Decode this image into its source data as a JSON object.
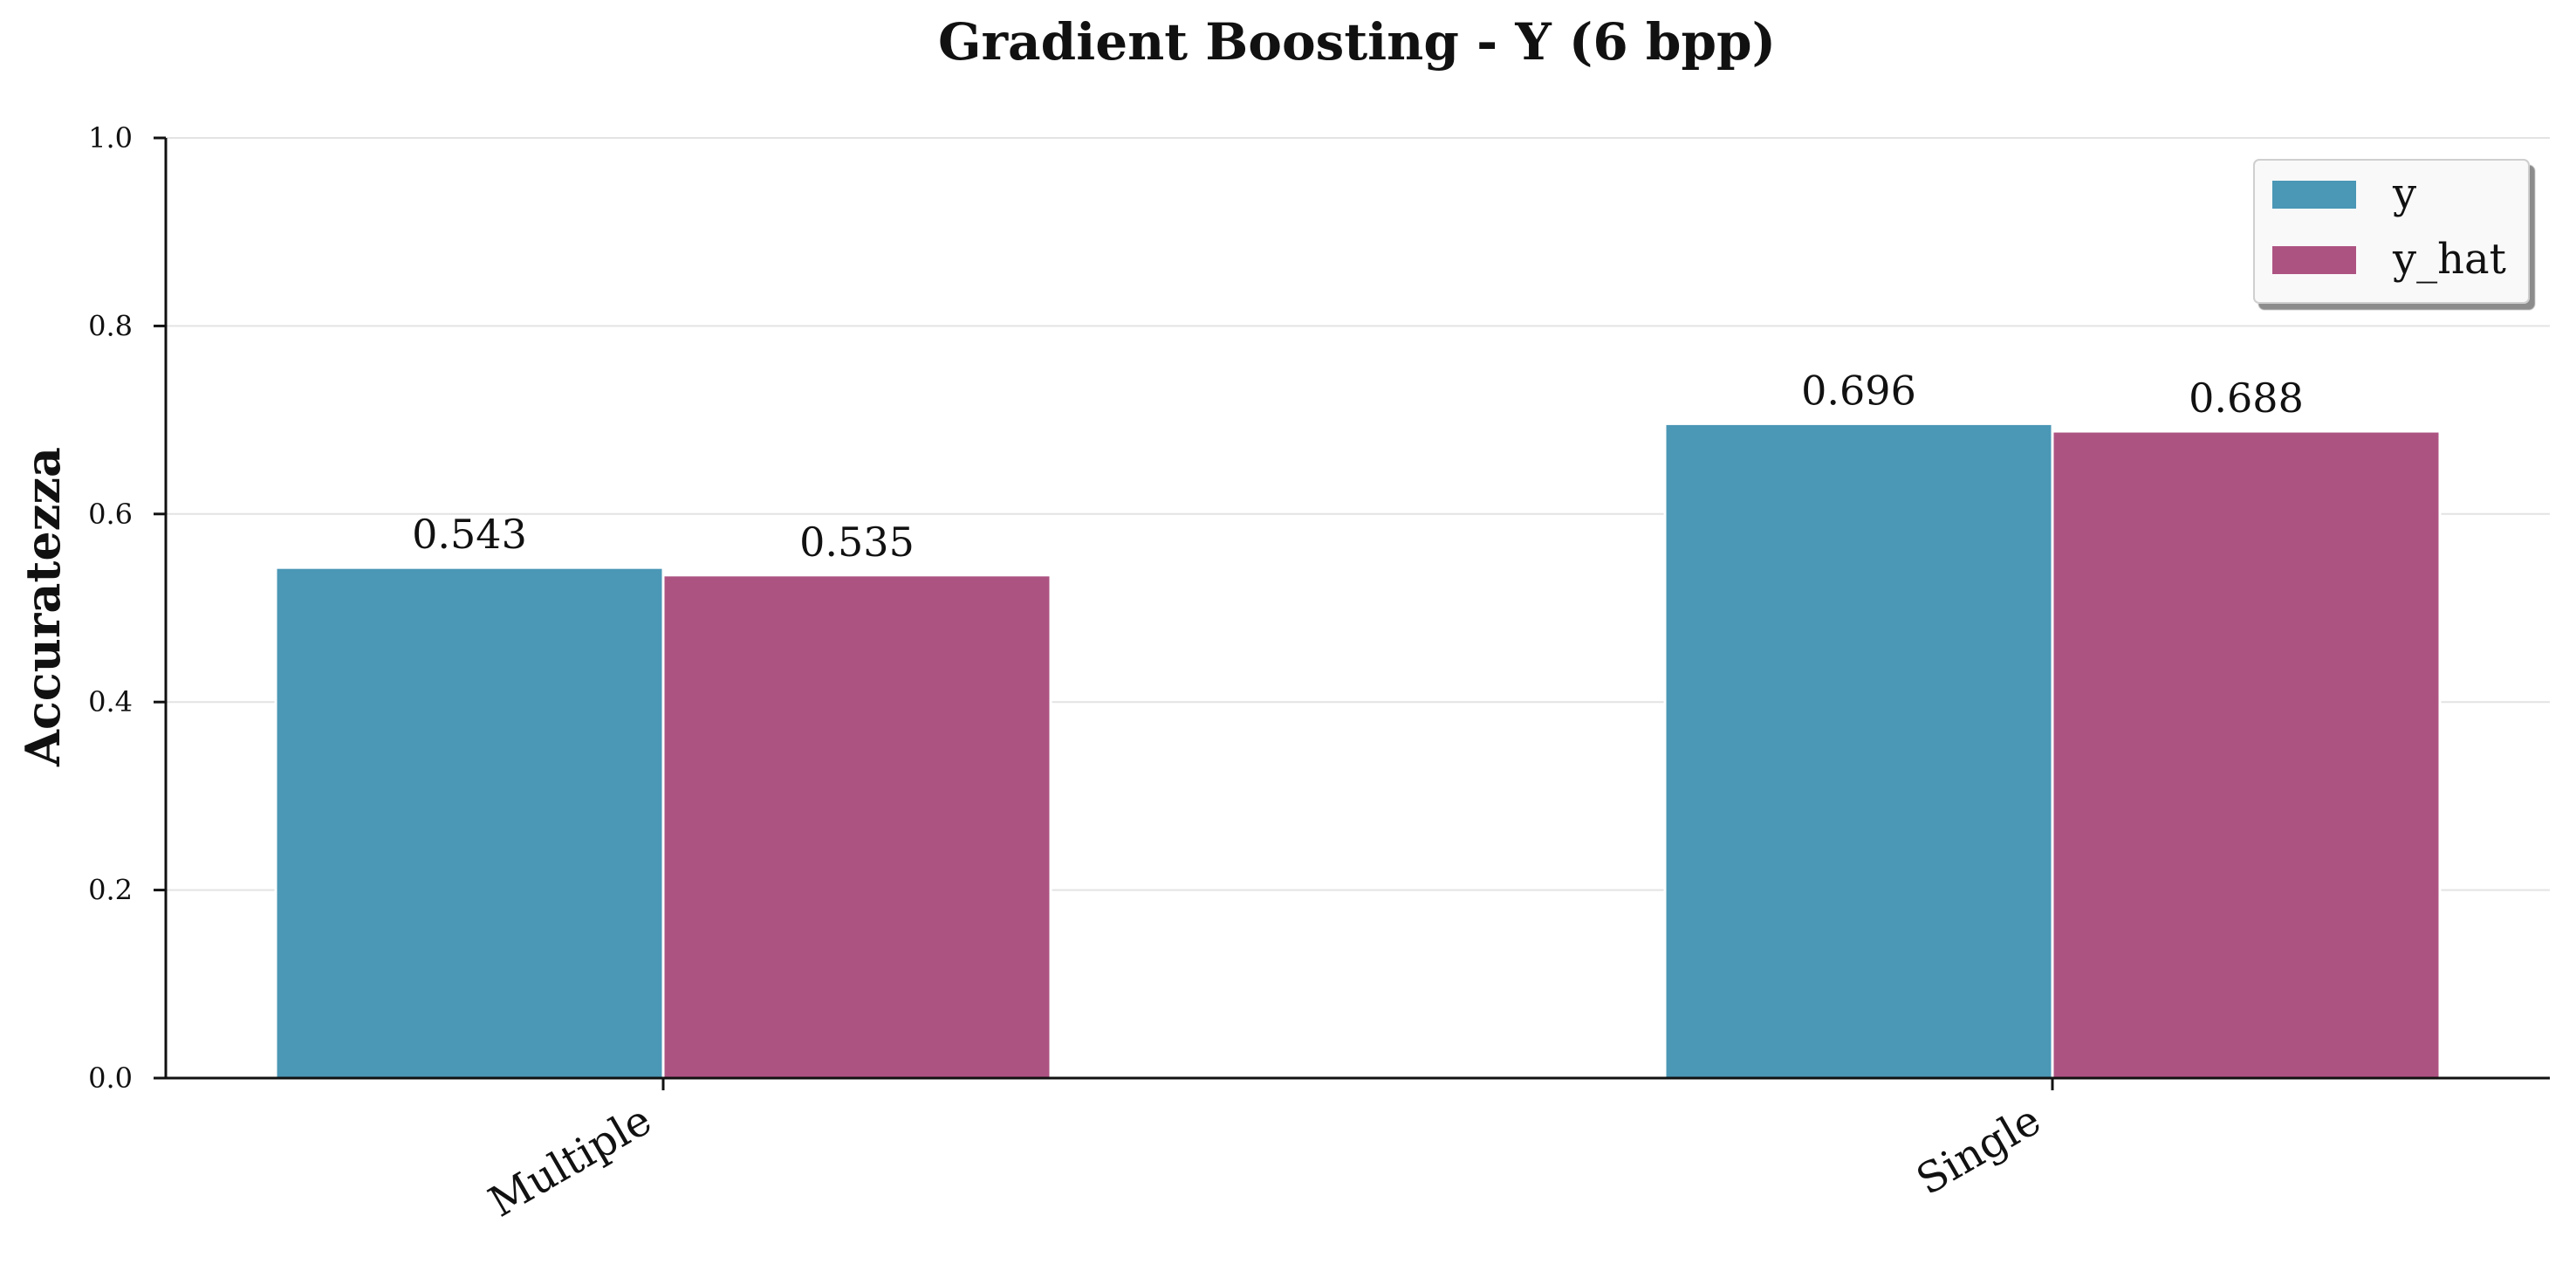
{
  "chart_data": {
    "type": "bar",
    "title": "Gradient Boosting - Y (6 bpp)",
    "xlabel": "",
    "ylabel": "Accuratezza",
    "categories": [
      "Multiple",
      "Single"
    ],
    "series": [
      {
        "name": "y",
        "values": [
          0.543,
          0.696
        ],
        "labels": [
          "0.543",
          "0.696"
        ],
        "color": "#4a97b6"
      },
      {
        "name": "y_hat",
        "values": [
          0.535,
          0.688
        ],
        "labels": [
          "0.535",
          "0.688"
        ],
        "color": "#ad5382"
      }
    ],
    "ylim": [
      0,
      1
    ],
    "yticks": [
      0,
      0.2,
      0.4,
      0.6,
      0.8,
      1
    ],
    "ytick_labels": [
      "0.0",
      "0.2",
      "0.4",
      "0.6",
      "0.8",
      "1.0"
    ],
    "grid": "horizontal",
    "legend_position": "top-right"
  }
}
